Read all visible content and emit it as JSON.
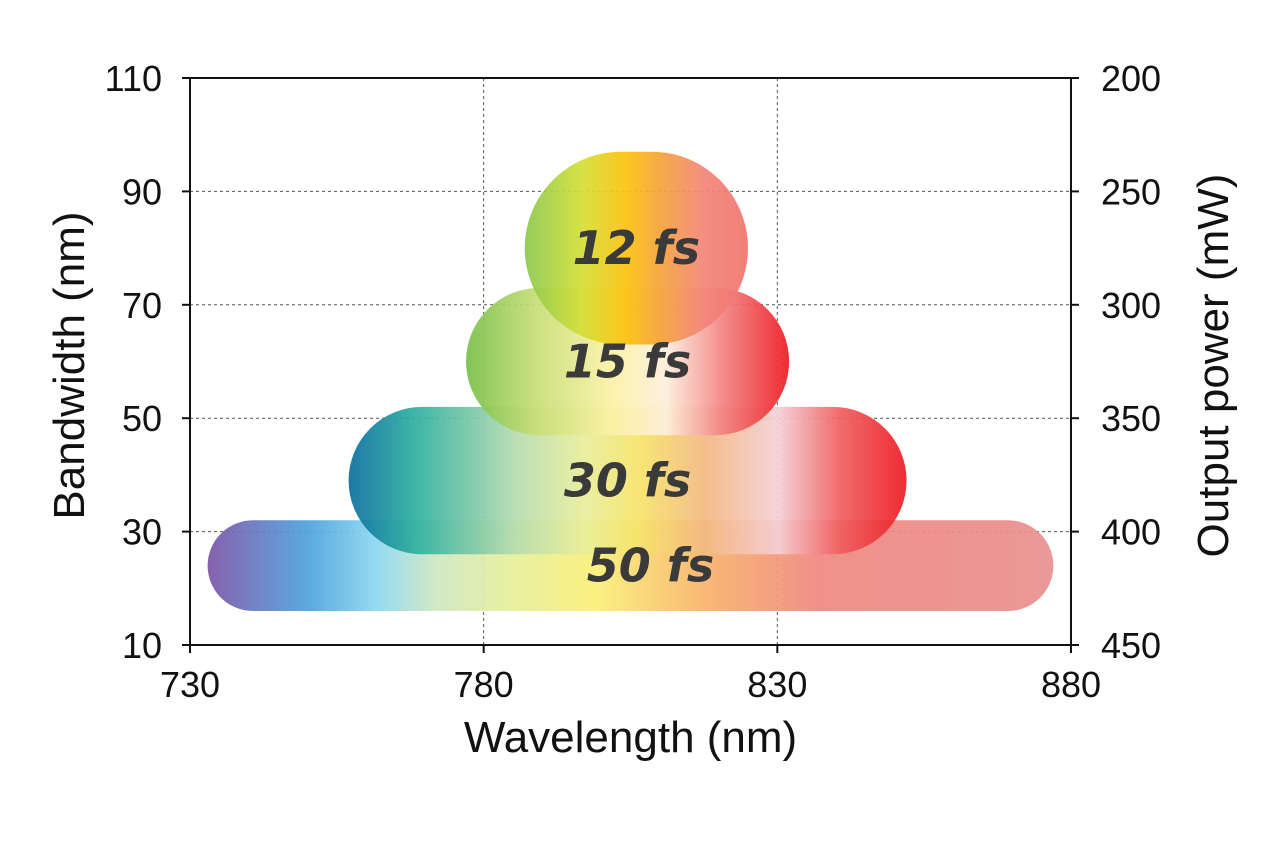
{
  "chart_data": {
    "type": "area",
    "title": "",
    "xlabel": "Wavelength (nm)",
    "ylabel": "Bandwidth (nm)",
    "y2label": "Output power (mW)",
    "xlim": [
      730,
      880
    ],
    "ylim": [
      10,
      110
    ],
    "y2lim": [
      450,
      200
    ],
    "xticks": [
      "730",
      "780",
      "830",
      "880"
    ],
    "yticks": [
      "10",
      "30",
      "50",
      "70",
      "90",
      "110"
    ],
    "y2ticks": [
      "450",
      "400",
      "350",
      "300",
      "250",
      "200"
    ],
    "grid": true,
    "regions": [
      {
        "label": "50 fs",
        "x_start": 733,
        "x_end": 877,
        "y_low": 16,
        "y_high": 32,
        "stops": [
          [
            "#7e55a8",
            0
          ],
          [
            "#4fa3dd",
            0.12
          ],
          [
            "#8dd8f0",
            0.2
          ],
          [
            "#cfe7c4",
            0.27
          ],
          [
            "#e6ef9a",
            0.36
          ],
          [
            "#fbef78",
            0.46
          ],
          [
            "#f9b66a",
            0.58
          ],
          [
            "#f08880",
            0.72
          ],
          [
            "#e89090",
            1
          ]
        ]
      },
      {
        "label": "30 fs",
        "x_start": 757,
        "x_end": 852,
        "y_low": 26,
        "y_high": 52,
        "stops": [
          [
            "#0d6fa0",
            0
          ],
          [
            "#2fb0a0",
            0.12
          ],
          [
            "#b7dcb0",
            0.3
          ],
          [
            "#e8ee9c",
            0.42
          ],
          [
            "#f6e46a",
            0.52
          ],
          [
            "#f3b883",
            0.64
          ],
          [
            "#f4d0d6",
            0.77
          ],
          [
            "#f06060",
            0.88
          ],
          [
            "#ed1c24",
            1
          ]
        ]
      },
      {
        "label": "15 fs",
        "x_start": 777,
        "x_end": 832,
        "y_low": 47,
        "y_high": 73,
        "stops": [
          [
            "#78c04a",
            0
          ],
          [
            "#c9de78",
            0.22
          ],
          [
            "#fbf2a6",
            0.45
          ],
          [
            "#fcefdc",
            0.62
          ],
          [
            "#f28080",
            0.8
          ],
          [
            "#ed1c24",
            1
          ]
        ]
      },
      {
        "label": "12 fs",
        "x_start": 787,
        "x_end": 825,
        "y_low": 63,
        "y_high": 97,
        "stops": [
          [
            "#8cc850",
            0
          ],
          [
            "#d2df38",
            0.25
          ],
          [
            "#fcc30f",
            0.45
          ],
          [
            "#f5a538",
            0.6
          ],
          [
            "#f3857a",
            0.8
          ],
          [
            "#f07570",
            1
          ]
        ]
      }
    ]
  }
}
